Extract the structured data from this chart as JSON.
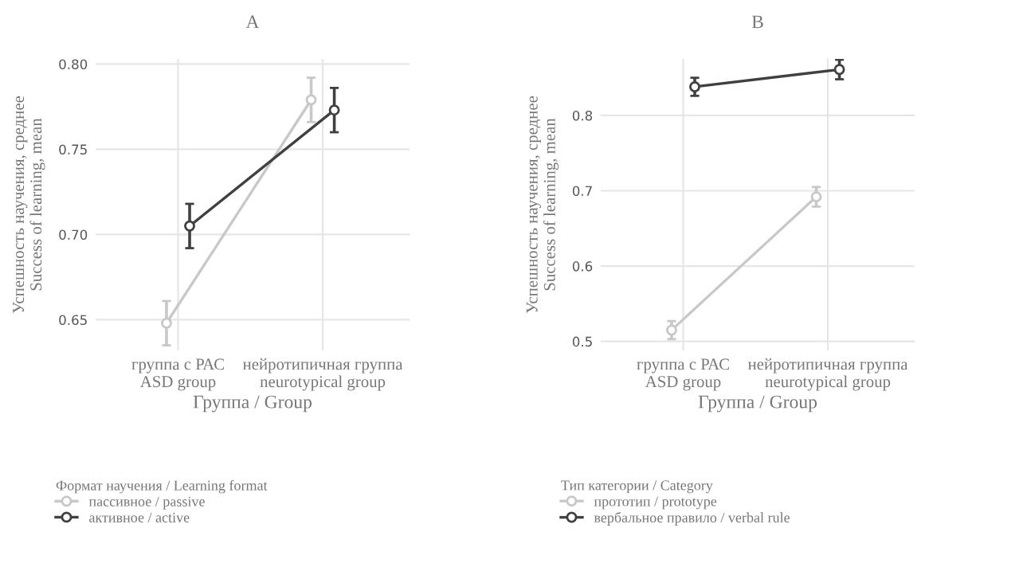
{
  "chart_data": [
    {
      "type": "line",
      "title": "A",
      "xlabel": "Группа / Group",
      "ylabel": "Успешность научения, среднее\nSuccess of learning, mean",
      "legend_title": "Формат научения / Learning format",
      "categories": [
        "группа с РАС\nASD group",
        "нейротипичная группа\nneurotypical group"
      ],
      "series": [
        {
          "name": "пассивное / passive",
          "color": "#c8c8c8",
          "values": [
            0.648,
            0.779
          ],
          "errors": [
            0.013,
            0.013
          ]
        },
        {
          "name": "активное / active",
          "color": "#404040",
          "values": [
            0.705,
            0.773
          ],
          "errors": [
            0.013,
            0.013
          ]
        }
      ],
      "ylim": [
        0.632,
        0.803
      ],
      "yticks": [
        {
          "value": 0.65,
          "label": "0.65"
        },
        {
          "value": 0.7,
          "label": "0.70"
        },
        {
          "value": 0.75,
          "label": "0.75"
        },
        {
          "value": 0.8,
          "label": "0.80"
        }
      ],
      "grid": true,
      "legend": "bottom",
      "marker": "circle",
      "line_style": "solid"
    },
    {
      "type": "line",
      "title": "B",
      "xlabel": "Группа / Group",
      "ylabel": "Успешность научения, среднее\nSuccess of learning, mean",
      "legend_title": "Тип категории / Category",
      "categories": [
        "группа с РАС\nASD group",
        "нейротипичная группа\nneurotypical group"
      ],
      "series": [
        {
          "name": "прототип / prototype",
          "color": "#c8c8c8",
          "values": [
            0.515,
            0.692
          ],
          "errors": [
            0.012,
            0.013
          ]
        },
        {
          "name": "вербальное правило / verbal rule",
          "color": "#404040",
          "values": [
            0.838,
            0.861
          ],
          "errors": [
            0.012,
            0.013
          ]
        }
      ],
      "ylim": [
        0.488,
        0.875
      ],
      "yticks": [
        0.5,
        0.6,
        0.7,
        0.8
      ],
      "grid": true,
      "legend": "bottom",
      "marker": "circle",
      "line_style": "solid"
    }
  ]
}
